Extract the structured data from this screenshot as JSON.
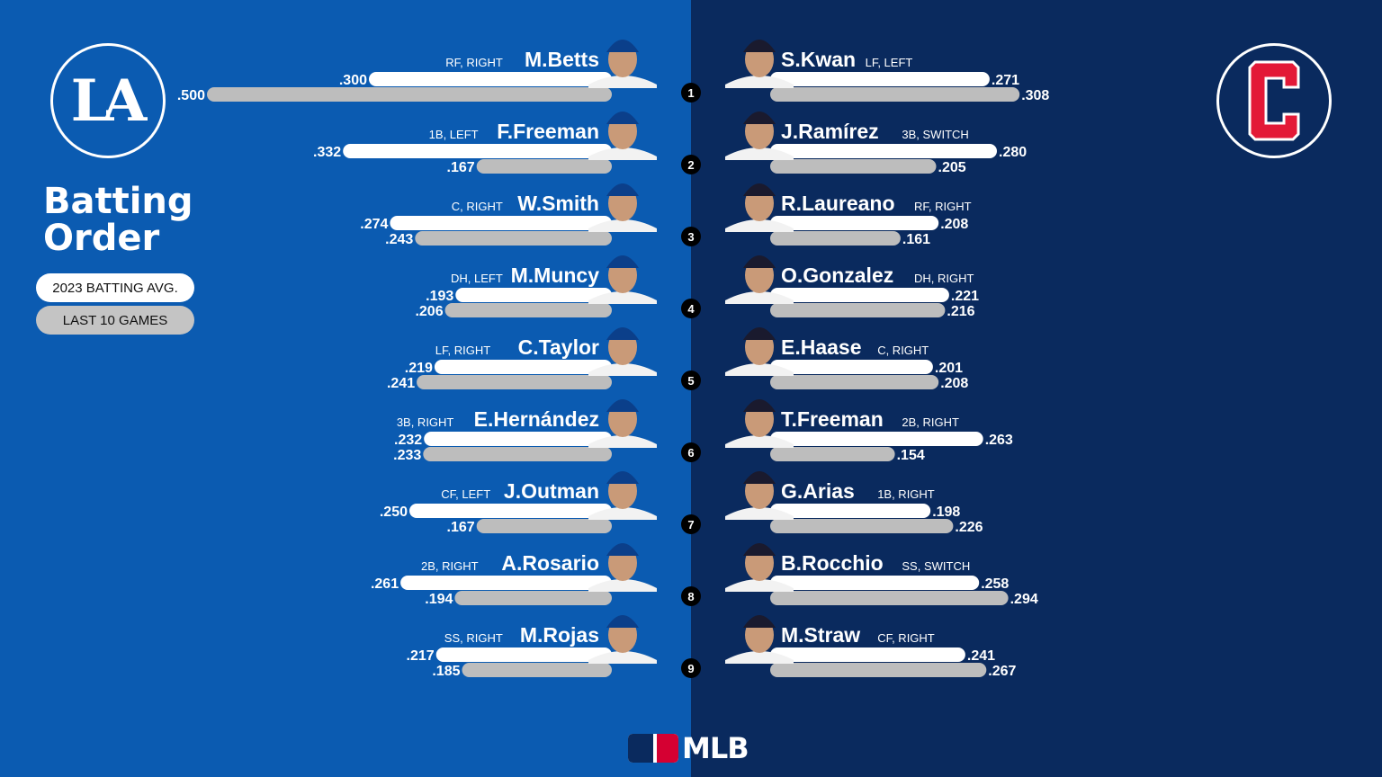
{
  "title": "Batting\nOrder",
  "legend": {
    "avg_label": "2023 BATTING AVG.",
    "last10_label": "LAST 10 GAMES"
  },
  "teams": {
    "left_logo_text": "LA",
    "right_logo_text": "C"
  },
  "brand": {
    "mlb": "MLB"
  },
  "colors": {
    "dodgers_blue": "#0b5bb1",
    "guardians_navy": "#0a2a5e",
    "guardians_red": "#e31937",
    "bar_avg": "#ffffff",
    "bar_last10": "#bdbdbd"
  },
  "chart_data": {
    "type": "bar",
    "order": [
      "1",
      "2",
      "3",
      "4",
      "5",
      "6",
      "7",
      "8",
      "9"
    ],
    "series": [
      {
        "name": "2023 BATTING AVG."
      },
      {
        "name": "LAST 10 GAMES"
      }
    ],
    "dodgers": [
      {
        "name": "M.Betts",
        "pos": "RF, RIGHT",
        "avg": 0.3,
        "avg_label": ".300",
        "last10": 0.5,
        "last10_label": ".500"
      },
      {
        "name": "F.Freeman",
        "pos": "1B, LEFT",
        "avg": 0.332,
        "avg_label": ".332",
        "last10": 0.167,
        "last10_label": ".167"
      },
      {
        "name": "W.Smith",
        "pos": "C, RIGHT",
        "avg": 0.274,
        "avg_label": ".274",
        "last10": 0.243,
        "last10_label": ".243"
      },
      {
        "name": "M.Muncy",
        "pos": "DH, LEFT",
        "avg": 0.193,
        "avg_label": ".193",
        "last10": 0.206,
        "last10_label": ".206"
      },
      {
        "name": "C.Taylor",
        "pos": "LF, RIGHT",
        "avg": 0.219,
        "avg_label": ".219",
        "last10": 0.241,
        "last10_label": ".241"
      },
      {
        "name": "E.Hernández",
        "pos": "3B, RIGHT",
        "avg": 0.232,
        "avg_label": ".232",
        "last10": 0.233,
        "last10_label": ".233"
      },
      {
        "name": "J.Outman",
        "pos": "CF, LEFT",
        "avg": 0.25,
        "avg_label": ".250",
        "last10": 0.167,
        "last10_label": ".167"
      },
      {
        "name": "A.Rosario",
        "pos": "2B, RIGHT",
        "avg": 0.261,
        "avg_label": ".261",
        "last10": 0.194,
        "last10_label": ".194"
      },
      {
        "name": "M.Rojas",
        "pos": "SS, RIGHT",
        "avg": 0.217,
        "avg_label": ".217",
        "last10": 0.185,
        "last10_label": ".185"
      }
    ],
    "guardians": [
      {
        "name": "S.Kwan",
        "pos": "LF, LEFT",
        "avg": 0.271,
        "avg_label": ".271",
        "last10": 0.308,
        "last10_label": ".308"
      },
      {
        "name": "J.Ramírez",
        "pos": "3B, SWITCH",
        "avg": 0.28,
        "avg_label": ".280",
        "last10": 0.205,
        "last10_label": ".205"
      },
      {
        "name": "R.Laureano",
        "pos": "RF, RIGHT",
        "avg": 0.208,
        "avg_label": ".208",
        "last10": 0.161,
        "last10_label": ".161"
      },
      {
        "name": "O.Gonzalez",
        "pos": "DH, RIGHT",
        "avg": 0.221,
        "avg_label": ".221",
        "last10": 0.216,
        "last10_label": ".216"
      },
      {
        "name": "E.Haase",
        "pos": "C, RIGHT",
        "avg": 0.201,
        "avg_label": ".201",
        "last10": 0.208,
        "last10_label": ".208"
      },
      {
        "name": "T.Freeman",
        "pos": "2B, RIGHT",
        "avg": 0.263,
        "avg_label": ".263",
        "last10": 0.154,
        "last10_label": ".154"
      },
      {
        "name": "G.Arias",
        "pos": "1B, RIGHT",
        "avg": 0.198,
        "avg_label": ".198",
        "last10": 0.226,
        "last10_label": ".226"
      },
      {
        "name": "B.Rocchio",
        "pos": "SS, SWITCH",
        "avg": 0.258,
        "avg_label": ".258",
        "last10": 0.294,
        "last10_label": ".294"
      },
      {
        "name": "M.Straw",
        "pos": "CF, RIGHT",
        "avg": 0.241,
        "avg_label": ".241",
        "last10": 0.267,
        "last10_label": ".267"
      }
    ]
  }
}
